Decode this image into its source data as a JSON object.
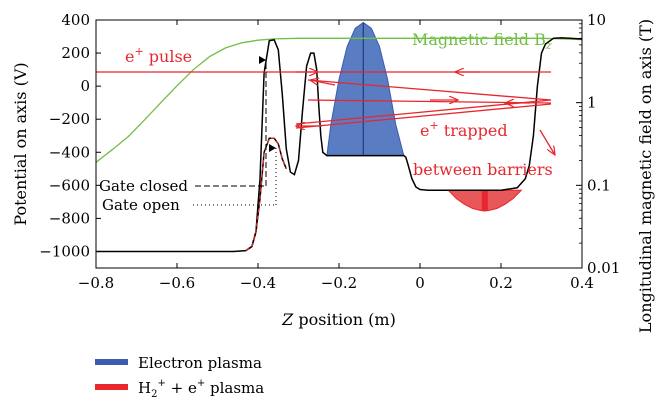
{
  "chart_data": {
    "type": "line",
    "xlabel_pre": "Z",
    "xlabel_post": " position (m)",
    "ylabel": "Potential on axis (V)",
    "y2label": "Longitudinal magnetic field on axis (T)",
    "xlim": [
      -0.8,
      0.4
    ],
    "ylim": [
      -1100,
      400
    ],
    "y2lim_log": [
      0.01,
      10
    ],
    "y2_scale": "log",
    "xticks": [
      -0.8,
      -0.6,
      -0.4,
      -0.2,
      0,
      0.2,
      0.4
    ],
    "xtick_labels": [
      "−0.8",
      "−0.6",
      "−0.4",
      "−0.2",
      "0",
      "0.2",
      "0.4"
    ],
    "yticks": [
      400,
      200,
      0,
      -200,
      -400,
      -600,
      -800,
      -1000
    ],
    "ytick_labels": [
      "400",
      "200",
      "0",
      "−200",
      "−400",
      "−600",
      "−800",
      "−1000"
    ],
    "y2ticks": [
      10,
      1,
      0.1,
      0.01
    ],
    "y2tick_labels": [
      "10",
      "1",
      "0.1",
      "0.01"
    ],
    "series": [
      {
        "name": "Gate closed",
        "axis": "left",
        "color": "#000000",
        "style": "solid",
        "x": [
          -0.8,
          -0.46,
          -0.43,
          -0.415,
          -0.405,
          -0.395,
          -0.385,
          -0.372,
          -0.36,
          -0.35,
          -0.34,
          -0.33,
          -0.32,
          -0.31,
          -0.3,
          -0.29,
          -0.28,
          -0.27,
          -0.262,
          -0.255,
          -0.25,
          -0.245,
          -0.24,
          -0.23,
          -0.215,
          -0.19,
          -0.12,
          -0.06,
          -0.04,
          -0.035,
          -0.03,
          -0.02,
          -0.01,
          0.0,
          0.02,
          0.05,
          0.1,
          0.2,
          0.24,
          0.26,
          0.27,
          0.28,
          0.29,
          0.3,
          0.31,
          0.33,
          0.35,
          0.37,
          0.4
        ],
        "y": [
          -1000,
          -1000,
          -995,
          -970,
          -880,
          -560,
          80,
          275,
          280,
          220,
          -50,
          -380,
          -520,
          -535,
          -450,
          -150,
          120,
          200,
          200,
          100,
          -120,
          -300,
          -400,
          -420,
          -420,
          -420,
          -420,
          -420,
          -420,
          -430,
          -470,
          -560,
          -610,
          -625,
          -630,
          -630,
          -630,
          -630,
          -615,
          -560,
          -480,
          -300,
          0,
          200,
          255,
          290,
          292,
          290,
          285
        ]
      },
      {
        "name": "Gate open",
        "axis": "left",
        "color": "#000000",
        "style": "solid",
        "x": [
          -0.43,
          -0.415,
          -0.405,
          -0.395,
          -0.385,
          -0.372,
          -0.36,
          -0.35,
          -0.34,
          -0.33
        ],
        "y": [
          -995,
          -970,
          -880,
          -680,
          -400,
          -315,
          -315,
          -350,
          -440,
          -500
        ]
      },
      {
        "name": "Magnetic field B_z",
        "axis": "right",
        "color": "#6fbf44",
        "x": [
          -0.8,
          -0.76,
          -0.72,
          -0.68,
          -0.64,
          -0.6,
          -0.56,
          -0.52,
          -0.48,
          -0.44,
          -0.4,
          -0.36,
          -0.3,
          -0.2,
          -0.1,
          0.0,
          0.1,
          0.2,
          0.3,
          0.35,
          0.4
        ],
        "y": [
          0.19,
          0.27,
          0.39,
          0.62,
          1.0,
          1.6,
          2.5,
          3.6,
          4.6,
          5.3,
          5.7,
          5.9,
          6.0,
          6.0,
          6.0,
          6.0,
          6.0,
          6.0,
          6.0,
          5.9,
          5.8
        ]
      },
      {
        "name": "Electron plasma",
        "axis": "left",
        "color": "#3b5cb0",
        "x": [
          -0.23,
          -0.22,
          -0.2,
          -0.18,
          -0.16,
          -0.14,
          -0.12,
          -0.1,
          -0.08,
          -0.06,
          -0.04
        ],
        "y": [
          -420,
          -230,
          40,
          240,
          350,
          385,
          350,
          240,
          40,
          -230,
          -420
        ]
      },
      {
        "name": "H2+ + e+ plasma",
        "axis": "left",
        "color": "#e8262d",
        "x": [
          0.07,
          0.09,
          0.11,
          0.13,
          0.15,
          0.16,
          0.17,
          0.19,
          0.21,
          0.23,
          0.25
        ],
        "y": [
          -630,
          -680,
          -715,
          -740,
          -752,
          -755,
          -752,
          -740,
          -715,
          -680,
          -630
        ]
      }
    ],
    "annotations": [
      {
        "text": "e",
        "sup": "+",
        "after": " pulse",
        "color": "#e8262d"
      },
      {
        "text": "e",
        "sup": "+",
        "after": " trapped",
        "color": "#e8262d"
      },
      {
        "text": "between barriers",
        "color": "#e8262d"
      },
      {
        "text": "Magnetic field B",
        "sub": "z",
        "color": "#6fbf44"
      },
      {
        "text": "Gate closed",
        "color": "#000000"
      },
      {
        "text": "Gate open",
        "color": "#000000"
      }
    ],
    "legend": {
      "placement": "below",
      "entries": [
        {
          "label_parts": [
            "Electron plasma"
          ],
          "color": "#3b5cb0"
        },
        {
          "label_parts": [
            "H",
            "2",
            "+",
            " + e",
            "+",
            " plasma"
          ],
          "color": "#e8262d"
        }
      ]
    },
    "colors": {
      "electron_fill": "#5a7cc2",
      "positron_fill": "#e8575a",
      "positron_core": "#e8262d",
      "arrows": "#e8262d",
      "field": "#6fbf44"
    }
  }
}
